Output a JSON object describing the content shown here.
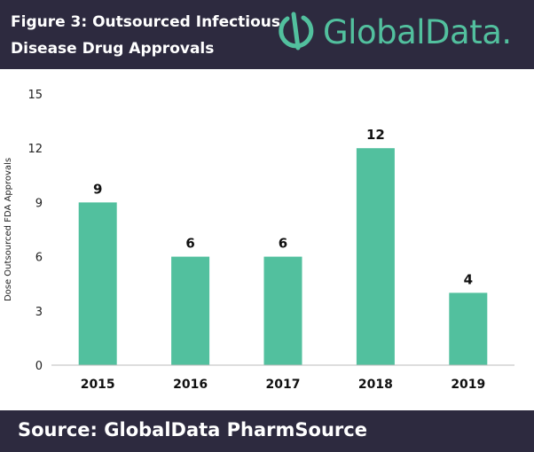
{
  "header": {
    "title_line1": "Figure 3: Outsourced Infectious",
    "title_line2": "Disease Drug Approvals",
    "logo_text": "GlobalData."
  },
  "footer": {
    "source": "Source: GlobalData PharmSource"
  },
  "colors": {
    "background_band": "#2d2a3f",
    "bar": "#52c09e",
    "logo": "#52c09e"
  },
  "chart_data": {
    "type": "bar",
    "categories": [
      "2015",
      "2016",
      "2017",
      "2018",
      "2019"
    ],
    "values": [
      9,
      6,
      6,
      12,
      4
    ],
    "data_labels": [
      "9",
      "6",
      "6",
      "12",
      "4"
    ],
    "title": "Figure 3: Outsourced Infectious Disease Drug Approvals",
    "xlabel": "",
    "ylabel": "Dose Outsourced FDA Approvals",
    "ylim": [
      0,
      15
    ],
    "yticks": [
      0,
      3,
      6,
      9,
      12,
      15
    ],
    "grid": false,
    "legend": "none"
  }
}
